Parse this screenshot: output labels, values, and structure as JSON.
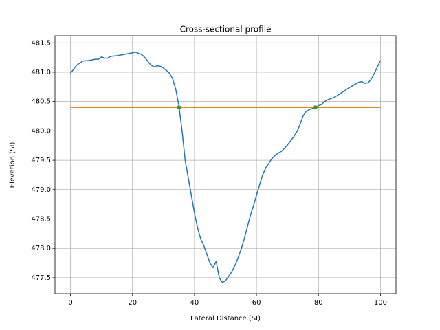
{
  "chart_data": {
    "type": "line",
    "title": "Cross-sectional profile",
    "x_label": "Lateral Distance (SI)",
    "y_label": "Elevation (SI)",
    "xlim": [
      -5,
      105
    ],
    "ylim": [
      477.23,
      481.62
    ],
    "xticks": [
      0,
      20,
      40,
      60,
      80,
      100
    ],
    "yticks": [
      477.5,
      {
        "value": 478,
        "label": "478.0"
      },
      478.5,
      {
        "value": 479,
        "label": "479.0"
      },
      479.5,
      {
        "value": 480,
        "label": "480.0"
      },
      480.5,
      {
        "value": 481,
        "label": "481.0"
      },
      481.5
    ],
    "grid": true,
    "series": [
      {
        "color": "#1f77b4",
        "style": "line",
        "x": [
          0,
          2,
          4,
          6,
          8,
          9,
          10,
          11,
          12,
          13,
          15,
          17,
          19,
          21,
          23,
          24,
          25,
          26,
          27,
          28,
          29,
          30,
          31,
          32,
          33,
          34,
          35,
          36,
          37,
          38,
          39,
          40,
          41,
          42,
          43,
          44,
          45,
          46,
          47,
          48,
          49,
          50,
          51,
          52,
          53,
          54,
          55,
          56,
          57,
          58,
          59,
          60,
          61,
          62,
          63,
          64,
          65,
          66,
          67,
          68,
          69,
          70,
          71,
          72,
          73,
          74,
          75,
          76,
          77,
          78,
          79,
          80,
          81,
          82,
          83,
          85,
          86,
          88,
          90,
          92,
          93,
          94,
          95,
          96,
          97,
          98,
          100
        ],
        "values": [
          480.98,
          481.12,
          481.19,
          481.2,
          481.22,
          481.22,
          481.26,
          481.24,
          481.24,
          481.27,
          481.28,
          481.3,
          481.32,
          481.34,
          481.3,
          481.25,
          481.18,
          481.12,
          481.09,
          481.11,
          481.1,
          481.07,
          481.03,
          480.98,
          480.88,
          480.7,
          480.42,
          480.0,
          479.5,
          479.2,
          478.9,
          478.6,
          478.35,
          478.16,
          478.05,
          477.9,
          477.75,
          477.67,
          477.78,
          477.5,
          477.42,
          477.45,
          477.52,
          477.6,
          477.7,
          477.83,
          477.98,
          478.15,
          478.35,
          478.55,
          478.72,
          478.9,
          479.08,
          479.25,
          479.37,
          479.45,
          479.53,
          479.58,
          479.62,
          479.65,
          479.7,
          479.76,
          479.83,
          479.9,
          479.98,
          480.1,
          480.25,
          480.33,
          480.36,
          480.38,
          480.4,
          480.43,
          480.45,
          480.5,
          480.53,
          480.57,
          480.6,
          480.67,
          480.74,
          480.8,
          480.83,
          480.84,
          480.81,
          480.82,
          480.88,
          480.98,
          481.2
        ]
      },
      {
        "color": "#ff7f0e",
        "style": "line",
        "x": [
          0,
          100
        ],
        "values": [
          480.4,
          480.4
        ]
      },
      {
        "color": "#2ca02c",
        "style": "marker",
        "x": [
          35,
          79
        ],
        "values": [
          480.4,
          480.4
        ]
      }
    ]
  }
}
